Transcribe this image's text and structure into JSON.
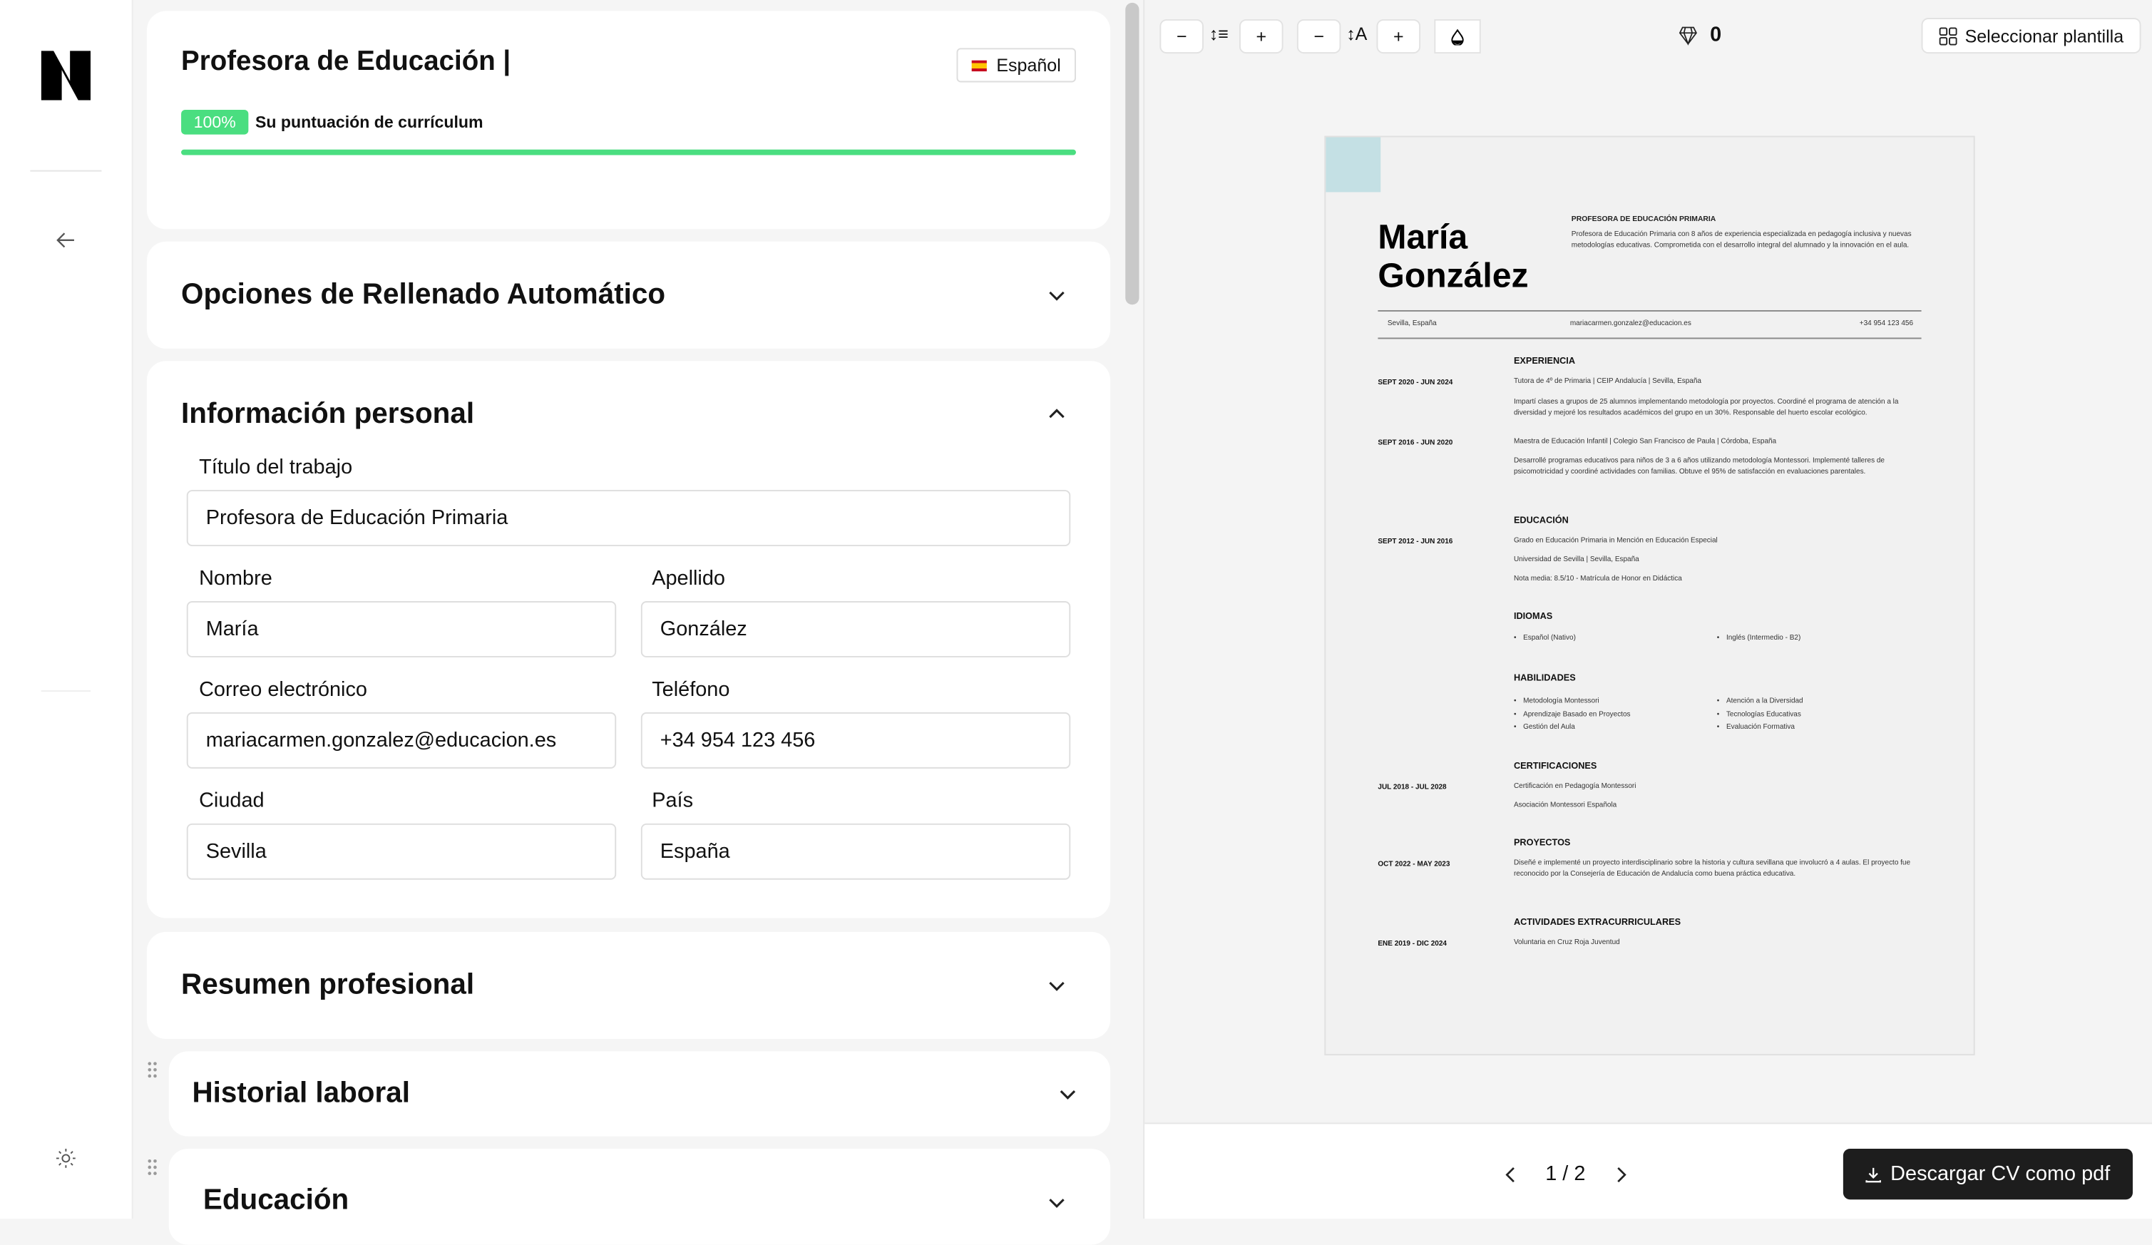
{
  "app": {
    "logo": "N"
  },
  "header": {
    "title": "Profesora de Educación |",
    "language": "Español",
    "score_percent": 100,
    "score_badge": "100%",
    "score_label": "Su puntuación de currículum",
    "accent": "#4ade80"
  },
  "sections": {
    "autofill": "Opciones de Rellenado Automático",
    "personal": "Información personal",
    "summary": "Resumen profesional",
    "work": "Historial laboral",
    "education": "Educación"
  },
  "form": {
    "job_title": {
      "label": "Título del trabajo",
      "value": "Profesora de Educación Primaria"
    },
    "first_name": {
      "label": "Nombre",
      "value": "María"
    },
    "last_name": {
      "label": "Apellido",
      "value": "González"
    },
    "email": {
      "label": "Correo electrónico",
      "value": "mariacarmen.gonzalez@educacion.es"
    },
    "phone": {
      "label": "Teléfono",
      "value": "+34 954 123 456"
    },
    "city": {
      "label": "Ciudad",
      "value": "Sevilla"
    },
    "country": {
      "label": "País",
      "value": "España"
    }
  },
  "toolbar": {
    "credits": "0",
    "select_template": "Seleccionar plantilla"
  },
  "pager": {
    "page": "1 / 2",
    "download": "Descargar CV como pdf"
  },
  "cv": {
    "first": "María",
    "last": "González",
    "headline": "PROFESORA DE EDUCACIÓN PRIMARIA",
    "summary": "Profesora de Educación Primaria con 8 años de experiencia especializada en pedagogía inclusiva y nuevas metodologías educativas. Comprometida con el desarrollo integral del alumnado y la innovación en el aula.",
    "location": "Sevilla, España",
    "email": "mariacarmen.gonzalez@educacion.es",
    "phone": "+34 954 123 456",
    "exp_title": "EXPERIENCIA",
    "exp": [
      {
        "date": "SEPT 2020 - JUN 2024",
        "role": "Tutora de 4º de Primaria | CEIP Andalucía | Sevilla, España",
        "desc": "Impartí clases a grupos de 25 alumnos implementando metodología por proyectos. Coordiné el programa de atención a la diversidad y mejoré los resultados académicos del grupo en un 30%. Responsable del huerto escolar ecológico."
      },
      {
        "date": "SEPT 2016 - JUN 2020",
        "role": "Maestra de Educación Infantil | Colegio San Francisco de Paula | Córdoba, España",
        "desc": "Desarrollé programas educativos para niños de 3 a 6 años utilizando metodología Montessori. Implementé talleres de psicomotricidad y coordiné actividades con familias. Obtuve el 95% de satisfacción en evaluaciones parentales."
      }
    ],
    "edu_title": "EDUCACIÓN",
    "edu": {
      "date": "SEPT 2012 - JUN 2016",
      "degree": "Grado en Educación Primaria in Mención en Educación Especial",
      "school": "Universidad de Sevilla | Sevilla, España",
      "note": "Nota media: 8.5/10 - Matrícula de Honor en Didáctica"
    },
    "lang_title": "IDIOMAS",
    "langs": [
      "Español (Nativo)",
      "Inglés (Intermedio - B2)"
    ],
    "skills_title": "HABILIDADES",
    "skills": [
      "Metodología Montessori",
      "Aprendizaje Basado en Proyectos",
      "Gestión del Aula",
      "Atención a la Diversidad",
      "Tecnologías Educativas",
      "Evaluación Formativa"
    ],
    "cert_title": "CERTIFICACIONES",
    "cert": {
      "date": "JUL 2018 - JUL 2028",
      "name": "Certificación en Pedagogía Montessori",
      "org": "Asociación Montessori Española"
    },
    "proj_title": "PROYECTOS",
    "proj": {
      "date": "OCT 2022 - MAY 2023",
      "desc": "Diseñé e implementé un proyecto interdisciplinario sobre la historia y cultura sevillana que involucró a 4 aulas. El proyecto fue reconocido por la Consejería de Educación de Andalucía como buena práctica educativa."
    },
    "extra_title": "ACTIVIDADES EXTRACURRICULARES",
    "extra": {
      "date": "ENE 2019 - DIC 2024",
      "desc": "Voluntaria en Cruz Roja Juventud"
    }
  }
}
